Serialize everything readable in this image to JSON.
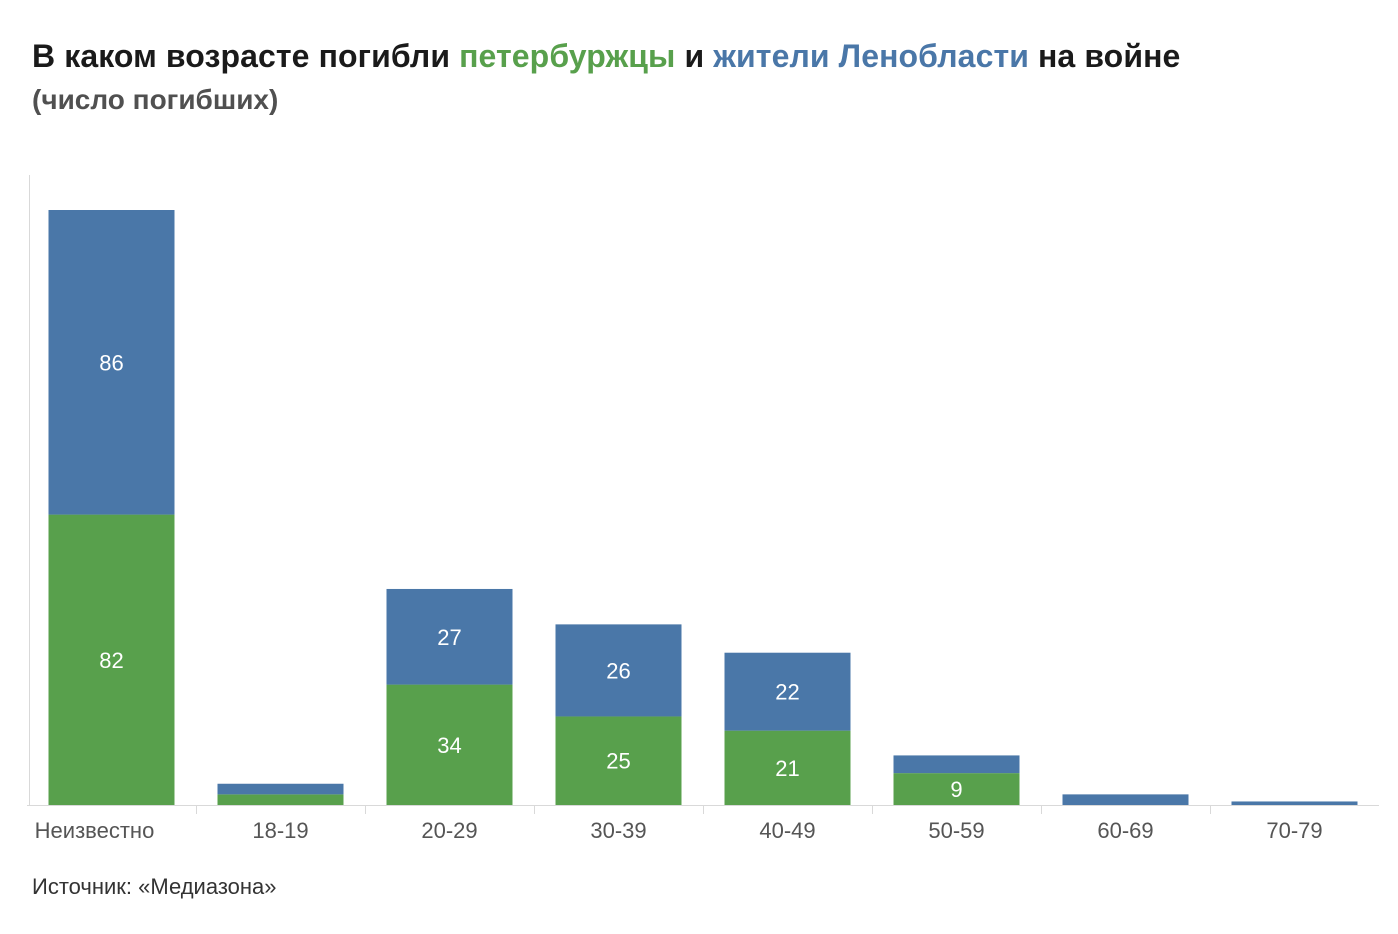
{
  "title": {
    "part1": "В каком возрасте погибли ",
    "part2": "петербуржцы",
    "part3": " и ",
    "part4": "жители Ленобласти",
    "part5": " на войне"
  },
  "subtitle": "(число погибших)",
  "source": "Источник: «Медиазона»",
  "colors": {
    "spb": "#58a04c",
    "lenobl": "#4a77a8",
    "title_text": "#1a1a1a",
    "subtitle_text": "#505050",
    "axis": "#d9d9d9",
    "tick_label": "#555555",
    "data_label": "#ffffff"
  },
  "chart_data": {
    "type": "bar",
    "stacked": true,
    "categories": [
      "Неизвестно",
      "18-19",
      "20-29",
      "30-39",
      "40-49",
      "50-59",
      "60-69",
      "70-79"
    ],
    "series": [
      {
        "name": "петербуржцы",
        "color": "#58a04c",
        "values": [
          82,
          3,
          34,
          25,
          21,
          9,
          0,
          0
        ],
        "labels": [
          "82",
          "",
          "34",
          "25",
          "21",
          "9",
          "",
          ""
        ]
      },
      {
        "name": "жители Ленобласти",
        "color": "#4a77a8",
        "values": [
          86,
          3,
          27,
          26,
          22,
          5,
          3,
          1
        ],
        "labels": [
          "86",
          "",
          "27",
          "26",
          "22",
          "",
          "",
          ""
        ]
      }
    ],
    "ylim": [
      0,
      168
    ],
    "xlabel": "",
    "ylabel": "",
    "grid": false,
    "legend": "in title"
  }
}
